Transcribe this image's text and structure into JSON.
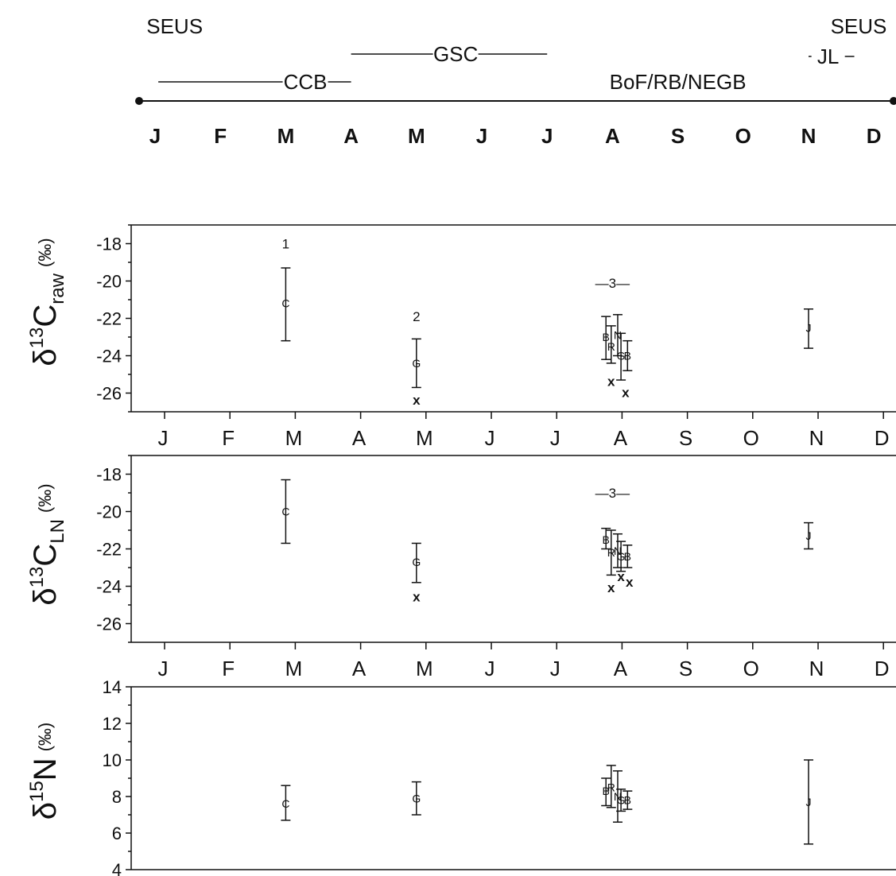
{
  "timeline": {
    "months": [
      "J",
      "F",
      "M",
      "A",
      "M",
      "J",
      "J",
      "A",
      "S",
      "O",
      "N",
      "D"
    ],
    "labels": [
      {
        "text": "SEUS",
        "month": 1.3
      },
      {
        "text": "SEUS",
        "month": 12.5
      },
      {
        "text": "CCB",
        "month": 3.3,
        "line_from": 1.05,
        "line_to": 4.0
      },
      {
        "text": "GSC",
        "month": 5.6,
        "line_from": 4.0,
        "line_to": 7.0
      },
      {
        "text": "BoF/RB/NEGB",
        "month": 9.0
      },
      {
        "text": "JL",
        "month": 11.3,
        "line_from": 11.0,
        "line_to": 11.7
      }
    ]
  },
  "chart_data": [
    {
      "type": "scatter",
      "name": "d13C_raw",
      "ylabel": {
        "main": "δ",
        "sup": "13",
        "base": "C",
        "sub": "raw",
        "unit": "(‰)"
      },
      "ylim": [
        -27,
        -17
      ],
      "yticks": [
        -18,
        -20,
        -22,
        -24,
        -26
      ],
      "months": [
        "J",
        "F",
        "M",
        "A",
        "M",
        "J",
        "J",
        "A",
        "S",
        "O",
        "N",
        "D"
      ],
      "points": [
        {
          "label": "C",
          "x": 3,
          "y": -21.2,
          "lo": -23.2,
          "hi": -19.3
        },
        {
          "label": "G",
          "x": 5,
          "y": -24.4,
          "lo": -25.7,
          "hi": -23.1
        },
        {
          "label": "B",
          "x": 7.9,
          "y": -23.0,
          "lo": -24.2,
          "hi": -21.9
        },
        {
          "label": "R",
          "x": 7.98,
          "y": -23.5,
          "lo": -24.4,
          "hi": -22.4
        },
        {
          "label": "N",
          "x": 8.08,
          "y": -22.9,
          "lo": -24.0,
          "hi": -21.8
        },
        {
          "label": "G",
          "x": 8.13,
          "y": -24.0,
          "lo": -25.3,
          "hi": -22.8
        },
        {
          "label": "B",
          "x": 8.23,
          "y": -24.0,
          "lo": -24.8,
          "hi": -23.2
        },
        {
          "label": "x",
          "x": 5,
          "y": -26.4
        },
        {
          "label": "x",
          "x": 7.98,
          "y": -25.4
        },
        {
          "label": "x",
          "x": 8.2,
          "y": -26.0
        },
        {
          "label": "J",
          "x": 11,
          "y": -22.5,
          "lo": -23.6,
          "hi": -21.5
        }
      ],
      "annotations": [
        {
          "text": "1",
          "x": 3,
          "y": -18.0
        },
        {
          "text": "2",
          "x": 5,
          "y": -21.9
        },
        {
          "text": "—3—",
          "x": 8.0,
          "y": -20.1
        }
      ]
    },
    {
      "type": "scatter",
      "name": "d13C_LN",
      "ylabel": {
        "main": "δ",
        "sup": "13",
        "base": "C",
        "sub": "LN",
        "unit": "(‰)"
      },
      "ylim": [
        -27,
        -17
      ],
      "yticks": [
        -18,
        -20,
        -22,
        -24,
        -26
      ],
      "months": [
        "J",
        "F",
        "M",
        "A",
        "M",
        "J",
        "J",
        "A",
        "S",
        "O",
        "N",
        "D"
      ],
      "points": [
        {
          "label": "C",
          "x": 3,
          "y": -20.0,
          "lo": -21.7,
          "hi": -18.3
        },
        {
          "label": "G",
          "x": 5,
          "y": -22.7,
          "lo": -23.8,
          "hi": -21.7
        },
        {
          "label": "B",
          "x": 7.9,
          "y": -21.5,
          "lo": -22.0,
          "hi": -20.9
        },
        {
          "label": "R",
          "x": 7.98,
          "y": -22.2,
          "lo": -23.4,
          "hi": -21.0
        },
        {
          "label": "N",
          "x": 8.08,
          "y": -22.1,
          "lo": -23.0,
          "hi": -21.2
        },
        {
          "label": "G",
          "x": 8.13,
          "y": -22.4,
          "lo": -23.2,
          "hi": -21.6
        },
        {
          "label": "B",
          "x": 8.23,
          "y": -22.4,
          "lo": -23.0,
          "hi": -21.8
        },
        {
          "label": "x",
          "x": 5,
          "y": -24.6
        },
        {
          "label": "x",
          "x": 7.98,
          "y": -24.1
        },
        {
          "label": "x",
          "x": 8.13,
          "y": -23.5
        },
        {
          "label": "x",
          "x": 8.26,
          "y": -23.8
        },
        {
          "label": "J",
          "x": 11,
          "y": -21.3,
          "lo": -22.0,
          "hi": -20.6
        }
      ],
      "annotations": [
        {
          "text": "—3—",
          "x": 8.0,
          "y": -19.0
        }
      ]
    },
    {
      "type": "scatter",
      "name": "d15N",
      "ylabel": {
        "main": "δ",
        "sup": "15",
        "base": "N",
        "sub": "",
        "unit": "(‰)"
      },
      "ylim": [
        4,
        14
      ],
      "yticks": [
        4,
        6,
        8,
        10,
        12,
        14
      ],
      "months": [],
      "points": [
        {
          "label": "C",
          "x": 3,
          "y": 7.6,
          "lo": 6.7,
          "hi": 8.6
        },
        {
          "label": "G",
          "x": 5,
          "y": 7.9,
          "lo": 7.0,
          "hi": 8.8
        },
        {
          "label": "B",
          "x": 7.9,
          "y": 8.3,
          "lo": 7.5,
          "hi": 9.0
        },
        {
          "label": "R",
          "x": 7.98,
          "y": 8.5,
          "lo": 7.4,
          "hi": 9.7
        },
        {
          "label": "N",
          "x": 8.08,
          "y": 8.0,
          "lo": 6.6,
          "hi": 9.4
        },
        {
          "label": "G",
          "x": 8.13,
          "y": 7.8,
          "lo": 7.2,
          "hi": 8.4
        },
        {
          "label": "B",
          "x": 8.23,
          "y": 7.8,
          "lo": 7.3,
          "hi": 8.3
        },
        {
          "label": "J",
          "x": 11,
          "y": 7.7,
          "lo": 5.4,
          "hi": 10.0
        }
      ],
      "annotations": []
    }
  ]
}
